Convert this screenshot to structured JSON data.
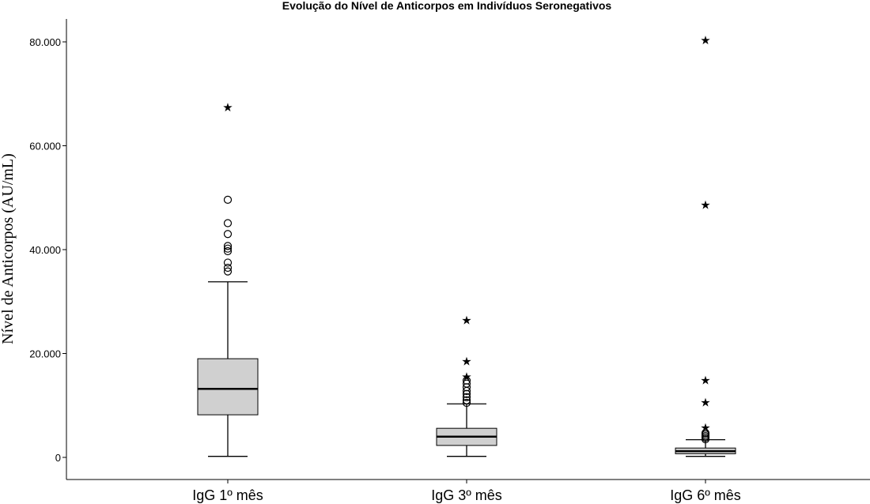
{
  "chart_data": {
    "type": "boxplot",
    "title": "Evolução do Nível de Anticorpos em Indivíduos Seronegativos",
    "xlabel": "",
    "ylabel": "Nível de Anticorpos (AU/mL)",
    "ylim": [
      -4000,
      84000
    ],
    "yticks": [
      0,
      20000,
      40000,
      60000,
      80000
    ],
    "ytick_labels": [
      "0",
      "20.000",
      "40.000",
      "60.000",
      "80.000"
    ],
    "grid": false,
    "box_color": "#d0d0d0",
    "categories": [
      "IgG 1º mês",
      "IgG 3º mês",
      "IgG 6º mês"
    ],
    "boxes": [
      {
        "category": "IgG 1º mês",
        "whisker_low": 200,
        "q1": 8200,
        "median": 13200,
        "q3": 19000,
        "whisker_high": 33800,
        "outliers": [
          35800,
          36500,
          37500,
          39700,
          40200,
          40700,
          43000,
          45100,
          49600
        ],
        "extremes": [
          67400
        ]
      },
      {
        "category": "IgG 3º mês",
        "whisker_low": 200,
        "q1": 2300,
        "median": 4000,
        "q3": 5600,
        "whisker_high": 10300,
        "outliers": [
          10500,
          11000,
          11600,
          12200,
          12800,
          13500,
          14200,
          14800
        ],
        "extremes": [
          15500,
          18500,
          26400
        ]
      },
      {
        "category": "IgG 6º mês",
        "whisker_low": 200,
        "q1": 700,
        "median": 1200,
        "q3": 1800,
        "whisker_high": 3400,
        "outliers": [
          3500,
          3800,
          4100,
          4400,
          4700
        ],
        "extremes": [
          5700,
          10600,
          14800,
          48600,
          80300
        ]
      }
    ]
  }
}
